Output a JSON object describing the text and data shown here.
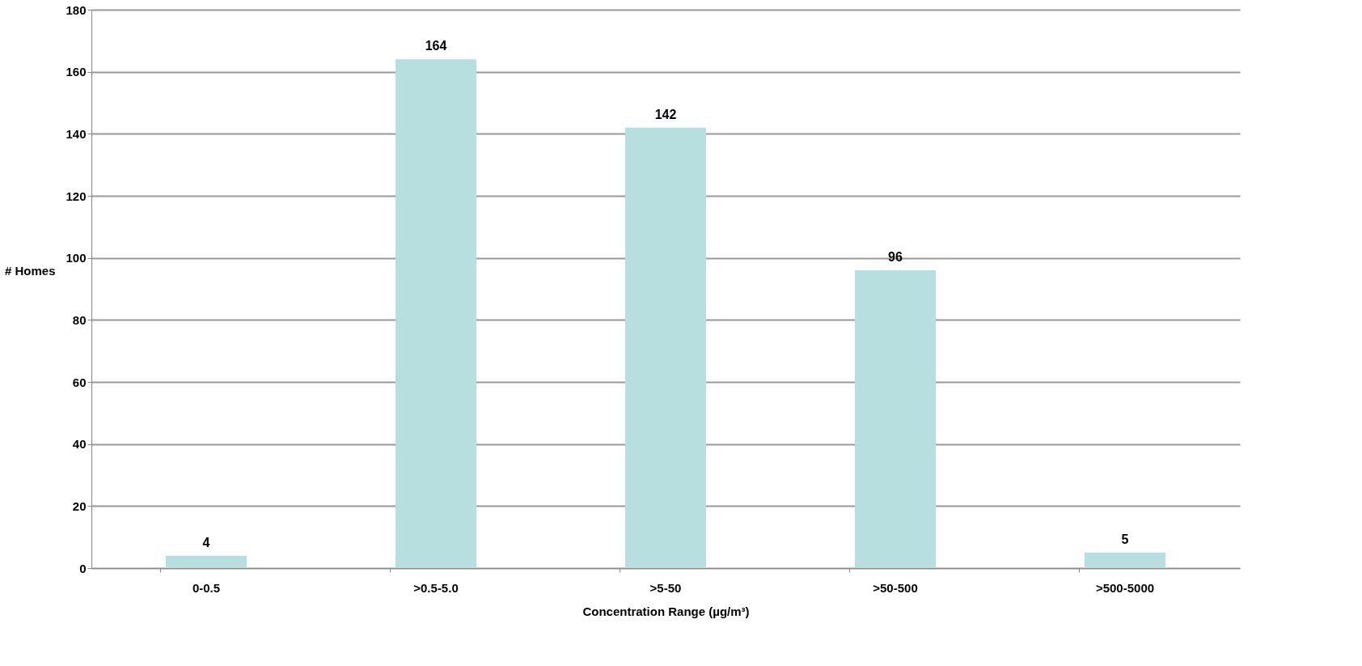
{
  "chart_data": {
    "type": "bar",
    "categories": [
      "0-0.5",
      ">0.5-5.0",
      ">5-50",
      ">50-500",
      ">500-5000"
    ],
    "values": [
      4,
      164,
      142,
      96,
      5
    ],
    "color": "#b7dfe0",
    "xlabel": "Concentration Range (µg/m³)",
    "ylabel": "# Homes",
    "ylim": [
      0,
      180
    ],
    "yticks": [
      0,
      20,
      40,
      60,
      80,
      100,
      120,
      140,
      160,
      180
    ],
    "grid": "y",
    "data_labels": true
  }
}
